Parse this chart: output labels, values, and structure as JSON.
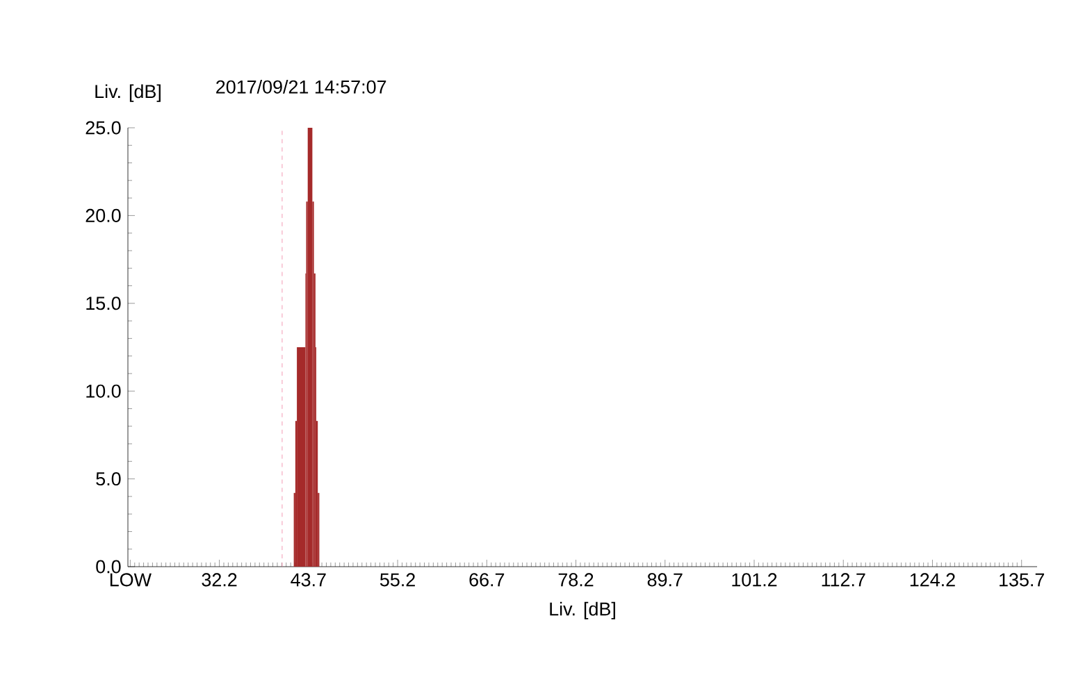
{
  "chart_data": {
    "type": "histogram",
    "title": "2017/09/21 14:57:07",
    "ylabel": "Liv. [dB]",
    "xlabel": "Liv. [dB]",
    "bins": [
      41.8,
      42.0,
      42.2,
      43.3,
      43.4,
      43.6,
      44.2,
      44.4,
      44.6,
      44.7,
      44.9,
      45.1
    ],
    "values": [
      4.2,
      8.3,
      12.5,
      16.7,
      20.8,
      25.0,
      20.8,
      16.7,
      12.5,
      8.3,
      4.2
    ],
    "color": "#a52a2a",
    "xlim": [
      20.4,
      137.7
    ],
    "xticks": [
      {
        "value": 20.7,
        "label": "LOW"
      },
      32.2,
      43.7,
      55.2,
      66.7,
      78.2,
      89.7,
      101.2,
      112.7,
      124.2,
      135.7
    ],
    "ylim": [
      0,
      25
    ],
    "yticks": [
      {
        "value": 0,
        "label": "0.0"
      },
      {
        "value": 5,
        "label": "5.0"
      },
      {
        "value": 10,
        "label": "10.0"
      },
      {
        "value": 15,
        "label": "15.0"
      },
      {
        "value": 20,
        "label": "20.0"
      },
      {
        "value": 25,
        "label": "25.0"
      }
    ],
    "ref_lines": [
      {
        "axis": "x",
        "value": 40.3,
        "color": "#f080a0",
        "line_style": "dashed"
      }
    ]
  }
}
